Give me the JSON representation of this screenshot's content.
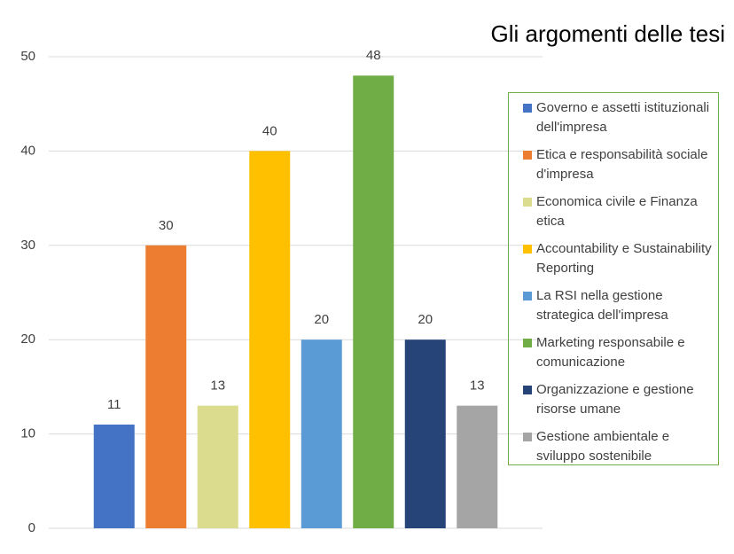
{
  "chart_data": {
    "type": "bar",
    "title": "Gli argomenti delle tesi",
    "categories": [
      null
    ],
    "series": [
      {
        "name": "Governo e assetti istituzionali dell'impresa",
        "color": "#4472c4",
        "values": [
          11
        ]
      },
      {
        "name": "Etica e responsabilità sociale d'impresa",
        "color": "#ed7d31",
        "values": [
          30
        ]
      },
      {
        "name": "Economica civile e Finanza etica",
        "color": "#dcdc8e",
        "values": [
          13
        ]
      },
      {
        "name": "Accountability e Sustainability Reporting",
        "color": "#ffc000",
        "values": [
          40
        ]
      },
      {
        "name": "La RSI nella gestione strategica dell'impresa",
        "color": "#5b9bd5",
        "values": [
          20
        ]
      },
      {
        "name": "Marketing responsabile e comunicazione",
        "color": "#70ad47",
        "values": [
          48
        ]
      },
      {
        "name": "Organizzazione e gestione risorse umane",
        "color": "#264478",
        "values": [
          20
        ]
      },
      {
        "name": "Gestione ambientale e sviluppo sostenibile",
        "color": "#a5a5a5",
        "values": [
          13
        ]
      }
    ],
    "ylim": [
      0,
      50
    ],
    "yticks": [
      0,
      10,
      20,
      30,
      40,
      50
    ],
    "grid": true,
    "legend": "right"
  }
}
